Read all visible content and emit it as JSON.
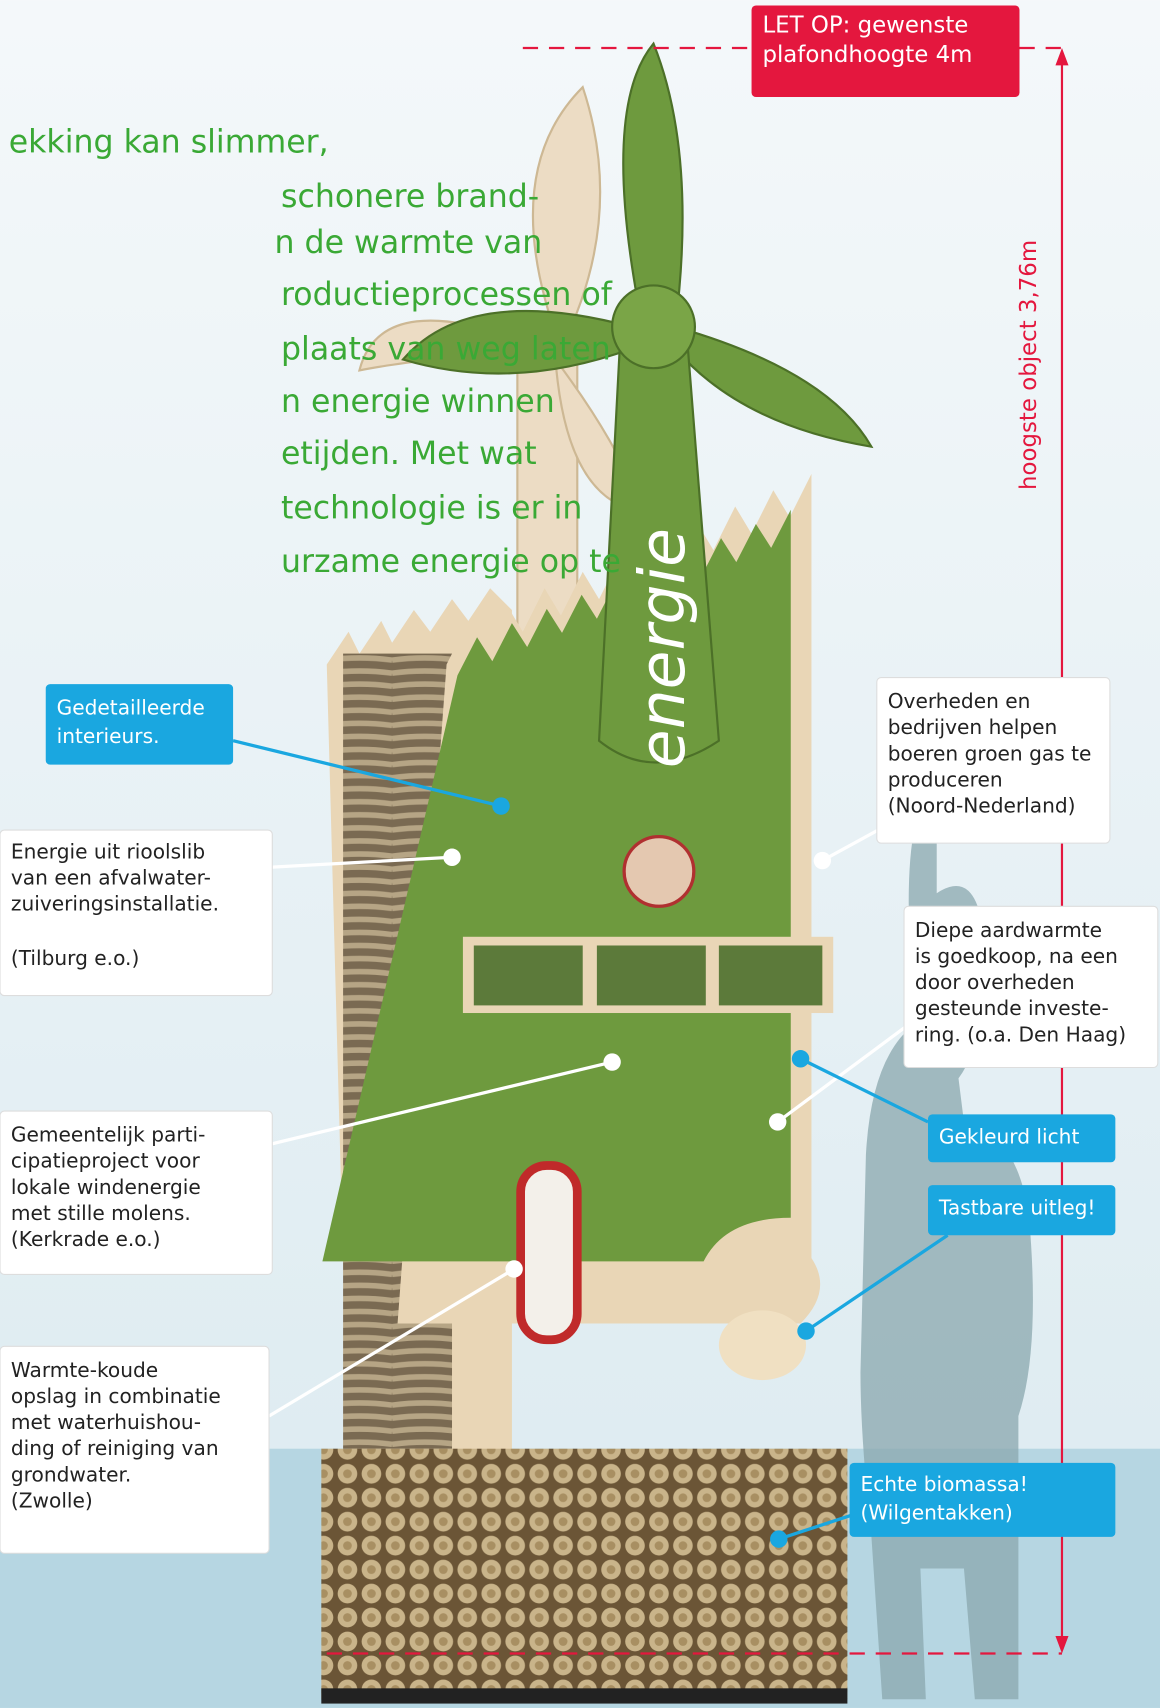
{
  "board_title": "energie",
  "height_label": "hoogste object 3,76m",
  "note": [
    "LET OP: gewenste",
    "plafondhoogte 4m"
  ],
  "intro_lines": [
    "ekking kan slimmer,",
    "schonere brand-",
    "n de warmte van",
    "roductieprocessen of",
    "plaats van weg laten",
    "n energie winnen",
    "etijden. Met wat",
    "technologie is er in",
    "urzame energie op te"
  ],
  "callouts": [
    {
      "style": "blue",
      "lines": [
        "Gedetailleerde",
        "interieurs."
      ]
    },
    {
      "style": "white",
      "lines": [
        "Energie uit rioolslib",
        "van een afvalwater-",
        "zuiveringsinstallatie.",
        "(Tilburg e.o.)"
      ]
    },
    {
      "style": "white",
      "lines": [
        "Overheden en",
        "bedrijven helpen",
        "boeren groen gas te",
        "produceren",
        "(Noord-Nederland)"
      ]
    },
    {
      "style": "white",
      "lines": [
        "Diepe aardwarmte",
        "is goedkoop, na een",
        "door overheden",
        "gesteunde investe-",
        "ring. (o.a. Den Haag)"
      ]
    },
    {
      "style": "blue",
      "lines": [
        "Gekleurd licht"
      ]
    },
    {
      "style": "blue",
      "lines": [
        "Tastbare uitleg!"
      ]
    },
    {
      "style": "white",
      "lines": [
        "Gemeentelijk parti-",
        "cipatieproject voor",
        "lokale windenergie",
        "met stille molens.",
        "(Kerkrade e.o.)"
      ]
    },
    {
      "style": "white",
      "lines": [
        "Warmte-koude",
        "opslag in combinatie",
        "met waterhuishou-",
        "ding of reiniging van",
        "grondwater.",
        "(Zwolle)"
      ]
    },
    {
      "style": "blue",
      "lines": [
        "Echte biomassa!",
        "(Wilgentakken)"
      ]
    }
  ]
}
